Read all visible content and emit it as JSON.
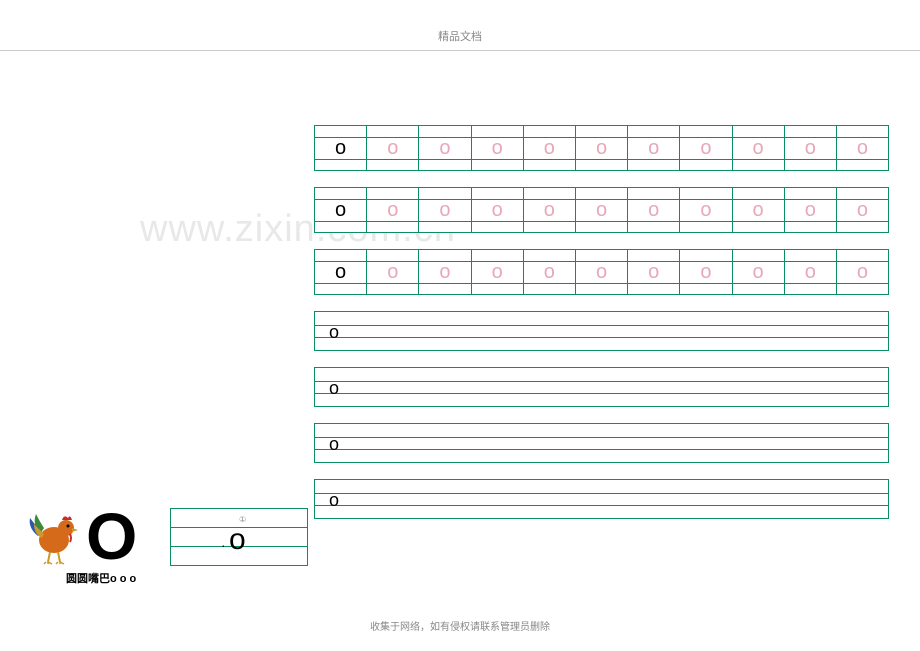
{
  "header": {
    "title": "精品文档"
  },
  "watermark": {
    "text": "www.zixin.com.cn"
  },
  "practice": {
    "model_letter": "o",
    "trace_letter": "o",
    "grid_rows": 3,
    "grid_cells": 11,
    "line_rows": 4,
    "border_color": "#0a9060",
    "model_color": "#000000",
    "trace_color": "#e8a8b8"
  },
  "illustration": {
    "big_letter": "O",
    "caption": "圆圆嘴巴o o o",
    "demo_letter": "o",
    "stroke_number": "①",
    "rooster_colors": {
      "body": "#d46a1a",
      "tail_green": "#3a8a3a",
      "tail_blue": "#2a5aaa",
      "comb": "#cc2a2a",
      "legs": "#cc9a2a"
    }
  },
  "footer": {
    "text": "收集于网络，如有侵权请联系管理员删除"
  }
}
